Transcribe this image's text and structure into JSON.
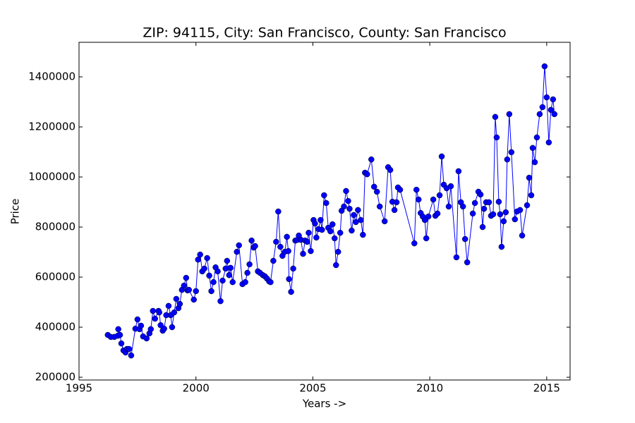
{
  "chart_data": {
    "type": "line",
    "title": "ZIP: 94115, City: San Francisco, County: San Francisco",
    "x_label": "Years ->",
    "y_label": "Price",
    "color": "#0000ff",
    "markers": true,
    "xlim": [
      1995,
      2016
    ],
    "xticks": [
      1995,
      2000,
      2005,
      2010,
      2015
    ],
    "ylim": [
      189000,
      1538000
    ],
    "yticks": [
      200000,
      400000,
      600000,
      800000,
      1000000,
      1200000,
      1400000
    ],
    "x": [
      1996.23,
      1996.36,
      1996.51,
      1996.66,
      1996.68,
      1996.75,
      1996.81,
      1996.9,
      1996.99,
      1997.05,
      1997.14,
      1997.23,
      1997.41,
      1997.5,
      1997.59,
      1997.65,
      1997.74,
      1997.89,
      1998.01,
      1998.07,
      1998.16,
      1998.25,
      1998.4,
      1998.43,
      1998.49,
      1998.58,
      1998.64,
      1998.73,
      1998.83,
      1998.92,
      1998.98,
      1999.07,
      1999.16,
      1999.25,
      1999.31,
      1999.4,
      1999.49,
      1999.58,
      1999.64,
      1999.7,
      1999.91,
      2000.0,
      2000.09,
      2000.18,
      2000.27,
      2000.36,
      2000.48,
      2000.57,
      2000.66,
      2000.75,
      2000.84,
      2000.93,
      2001.05,
      2001.14,
      2001.27,
      2001.33,
      2001.42,
      2001.48,
      2001.57,
      2001.75,
      2001.84,
      2001.99,
      2002.11,
      2002.2,
      2002.29,
      2002.38,
      2002.47,
      2002.53,
      2002.65,
      2002.74,
      2002.86,
      2002.95,
      2003.04,
      2003.13,
      2003.19,
      2003.31,
      2003.43,
      2003.52,
      2003.61,
      2003.7,
      2003.8,
      2003.89,
      2003.95,
      2003.98,
      2004.07,
      2004.16,
      2004.25,
      2004.34,
      2004.4,
      2004.49,
      2004.58,
      2004.67,
      2004.76,
      2004.82,
      2004.91,
      2005.03,
      2005.09,
      2005.15,
      2005.24,
      2005.33,
      2005.39,
      2005.48,
      2005.57,
      2005.66,
      2005.75,
      2005.84,
      2005.93,
      2005.99,
      2006.08,
      2006.17,
      2006.23,
      2006.33,
      2006.42,
      2006.51,
      2006.57,
      2006.66,
      2006.75,
      2006.84,
      2006.93,
      2007.05,
      2007.14,
      2007.23,
      2007.32,
      2007.5,
      2007.62,
      2007.74,
      2007.86,
      2008.07,
      2008.22,
      2008.31,
      2008.4,
      2008.49,
      2008.58,
      2008.64,
      2008.73,
      2009.34,
      2009.43,
      2009.52,
      2009.61,
      2009.7,
      2009.79,
      2009.85,
      2009.94,
      2010.15,
      2010.24,
      2010.33,
      2010.42,
      2010.51,
      2010.6,
      2010.72,
      2010.81,
      2010.9,
      2011.14,
      2011.23,
      2011.33,
      2011.42,
      2011.51,
      2011.6,
      2011.84,
      2011.93,
      2012.08,
      2012.17,
      2012.26,
      2012.32,
      2012.41,
      2012.53,
      2012.62,
      2012.71,
      2012.8,
      2012.86,
      2012.95,
      2013.01,
      2013.07,
      2013.16,
      2013.25,
      2013.31,
      2013.4,
      2013.49,
      2013.64,
      2013.73,
      2013.86,
      2013.95,
      2014.16,
      2014.25,
      2014.34,
      2014.4,
      2014.49,
      2014.58,
      2014.7,
      2014.82,
      2014.91,
      2015.0,
      2015.09,
      2015.18,
      2015.27,
      2015.33
    ],
    "values": [
      369000,
      361000,
      361000,
      366000,
      392000,
      369000,
      335000,
      307000,
      299000,
      313000,
      313000,
      287000,
      394000,
      431000,
      392000,
      406000,
      363000,
      355000,
      375000,
      392000,
      465000,
      434000,
      465000,
      459000,
      408000,
      386000,
      394000,
      448000,
      485000,
      448000,
      400000,
      459000,
      513000,
      476000,
      493000,
      549000,
      566000,
      597000,
      547000,
      549000,
      510000,
      544000,
      670000,
      690000,
      623000,
      634000,
      676000,
      606000,
      544000,
      580000,
      639000,
      623000,
      504000,
      586000,
      634000,
      665000,
      608000,
      637000,
      580000,
      701000,
      727000,
      572000,
      580000,
      617000,
      651000,
      746000,
      718000,
      724000,
      623000,
      617000,
      608000,
      603000,
      594000,
      583000,
      580000,
      665000,
      741000,
      862000,
      721000,
      685000,
      701000,
      761000,
      704000,
      592000,
      541000,
      634000,
      746000,
      749000,
      766000,
      749000,
      693000,
      746000,
      741000,
      777000,
      704000,
      828000,
      814000,
      758000,
      792000,
      828000,
      789000,
      927000,
      896000,
      797000,
      783000,
      811000,
      755000,
      648000,
      701000,
      777000,
      865000,
      882000,
      944000,
      904000,
      873000,
      786000,
      848000,
      820000,
      868000,
      828000,
      769000,
      1017000,
      1011000,
      1070000,
      961000,
      941000,
      882000,
      823000,
      1039000,
      1028000,
      901000,
      868000,
      899000,
      958000,
      949000,
      735000,
      949000,
      910000,
      856000,
      842000,
      828000,
      755000,
      842000,
      910000,
      845000,
      854000,
      927000,
      1082000,
      969000,
      955000,
      882000,
      963000,
      679000,
      1023000,
      899000,
      882000,
      752000,
      659000,
      854000,
      896000,
      941000,
      930000,
      800000,
      873000,
      899000,
      899000,
      845000,
      851000,
      1240000,
      1158000,
      901000,
      851000,
      721000,
      823000,
      859000,
      1070000,
      1251000,
      1099000,
      831000,
      862000,
      868000,
      766000,
      887000,
      997000,
      927000,
      1116000,
      1059000,
      1158000,
      1251000,
      1279000,
      1442000,
      1318000,
      1138000,
      1268000,
      1310000,
      1251000
    ]
  }
}
